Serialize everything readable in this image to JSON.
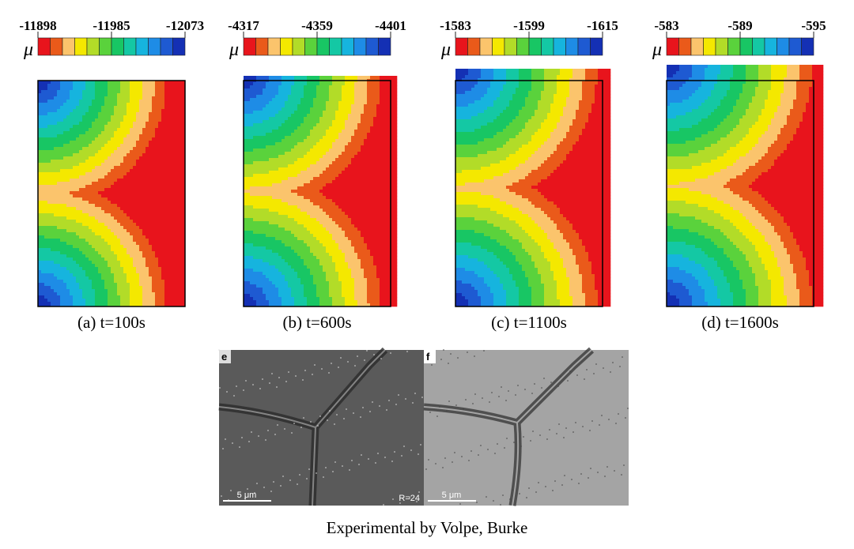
{
  "panels": [
    {
      "colorbar": {
        "symbol": "μ",
        "ticks": [
          "-11898",
          "-11985",
          "-12073"
        ]
      },
      "caption": "(a) t=100s"
    },
    {
      "colorbar": {
        "symbol": "μ",
        "ticks": [
          "-4317",
          "-4359",
          "-4401"
        ]
      },
      "caption": "(b) t=600s"
    },
    {
      "colorbar": {
        "symbol": "μ",
        "ticks": [
          "-1583",
          "-1599",
          "-1615"
        ]
      },
      "caption": "(c) t=1100s"
    },
    {
      "colorbar": {
        "symbol": "μ",
        "ticks": [
          "-583",
          "-589",
          "-595"
        ]
      },
      "caption": "(d) t=1600s"
    }
  ],
  "experiment": {
    "images": [
      {
        "label": "e",
        "scalebar": "5 μm",
        "note": "R=24"
      },
      {
        "label": "f",
        "scalebar": "5 μm"
      }
    ],
    "caption": "Experimental by Volpe, Burke"
  }
}
